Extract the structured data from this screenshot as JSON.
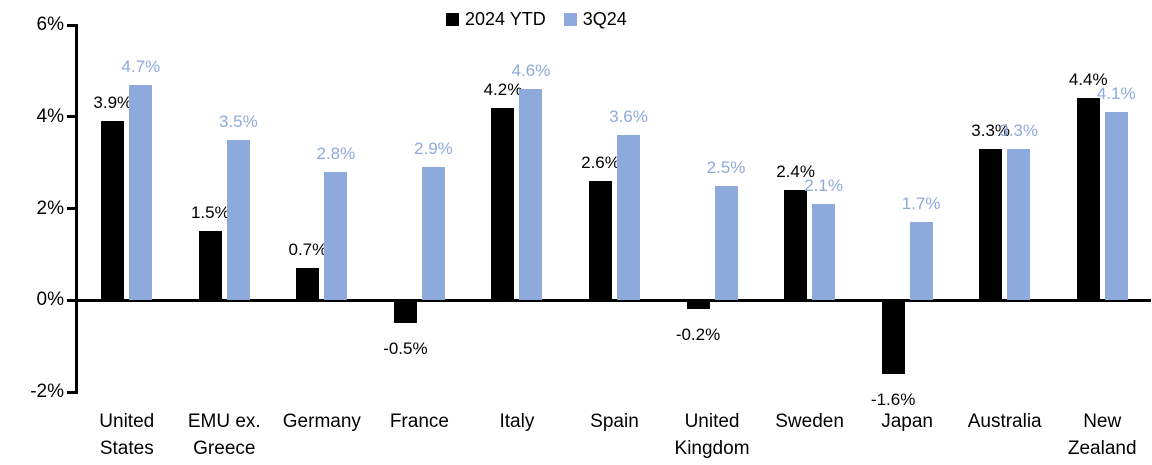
{
  "chart_data": {
    "type": "bar",
    "title": "",
    "xlabel": "",
    "ylabel": "",
    "ylim": [
      -2,
      6
    ],
    "grid": false,
    "legend_position": "top-center",
    "y_axis": {
      "tick_values": [
        6,
        4,
        2,
        0,
        -2
      ],
      "tick_labels": [
        "6%",
        "4%",
        "2%",
        "0%",
        "-2%"
      ]
    },
    "categories": [
      "United States",
      "EMU ex. Greece",
      "Germany",
      "France",
      "Italy",
      "Spain",
      "United Kingdom",
      "Sweden",
      "Japan",
      "Australia",
      "New Zealand"
    ],
    "category_display_lines": [
      [
        "United",
        "States"
      ],
      [
        "EMU ex.",
        "Greece"
      ],
      [
        "Germany"
      ],
      [
        "France"
      ],
      [
        "Italy"
      ],
      [
        "Spain"
      ],
      [
        "United",
        "Kingdom"
      ],
      [
        "Sweden"
      ],
      [
        "Japan"
      ],
      [
        "Australia"
      ],
      [
        "New",
        "Zealand"
      ]
    ],
    "series": [
      {
        "name": "2024 YTD",
        "color": "#000000",
        "label_color": "#000000",
        "values": [
          3.9,
          1.5,
          0.7,
          -0.5,
          4.2,
          2.6,
          -0.2,
          2.4,
          -1.6,
          3.3,
          4.4
        ],
        "labels": [
          "3.9%",
          "1.5%",
          "0.7%",
          "-0.5%",
          "4.2%",
          "2.6%",
          "-0.2%",
          "2.4%",
          "-1.6%",
          "3.3%",
          "4.4%"
        ]
      },
      {
        "name": "3Q24",
        "color": "#8EA9DB",
        "label_color": "#8EA9DB",
        "values": [
          4.7,
          3.5,
          2.8,
          2.9,
          4.6,
          3.6,
          2.5,
          2.1,
          1.7,
          3.3,
          4.1
        ],
        "labels": [
          "4.7%",
          "3.5%",
          "2.8%",
          "2.9%",
          "4.6%",
          "3.6%",
          "2.5%",
          "2.1%",
          "1.7%",
          "3.3%",
          "4.1%"
        ]
      }
    ]
  }
}
